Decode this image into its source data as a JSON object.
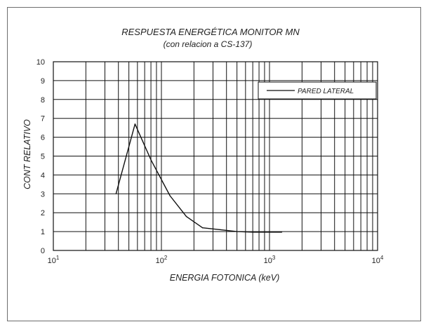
{
  "chart_data": {
    "type": "line",
    "title": "RESPUESTA ENERGÉTICA MONITOR MN",
    "subtitle": "(con relacion a CS-137)",
    "xlabel": "ENERGIA FOTONICA (keV)",
    "ylabel": "CONT  RELATIVO",
    "xscale": "log",
    "xlim": [
      10,
      10000
    ],
    "ylim": [
      0,
      10
    ],
    "x_ticks": [
      {
        "base": "10",
        "exp": "1",
        "value": 10
      },
      {
        "base": "10",
        "exp": "2",
        "value": 100
      },
      {
        "base": "10",
        "exp": "3",
        "value": 1000
      },
      {
        "base": "10",
        "exp": "4",
        "value": 10000
      }
    ],
    "y_ticks": [
      "0",
      "1",
      "2",
      "3",
      "4",
      "5",
      "6",
      "7",
      "8",
      "9",
      "10"
    ],
    "grid": true,
    "legend_position": "top-right",
    "series": [
      {
        "name": "PARED LATERAL",
        "color": "#111111",
        "x": [
          38,
          57,
          80,
          120,
          170,
          240,
          350,
          500,
          700,
          1000,
          1300
        ],
        "y": [
          3.0,
          6.7,
          4.8,
          2.9,
          1.8,
          1.2,
          1.1,
          1.0,
          0.97,
          0.97,
          0.97
        ]
      }
    ]
  }
}
